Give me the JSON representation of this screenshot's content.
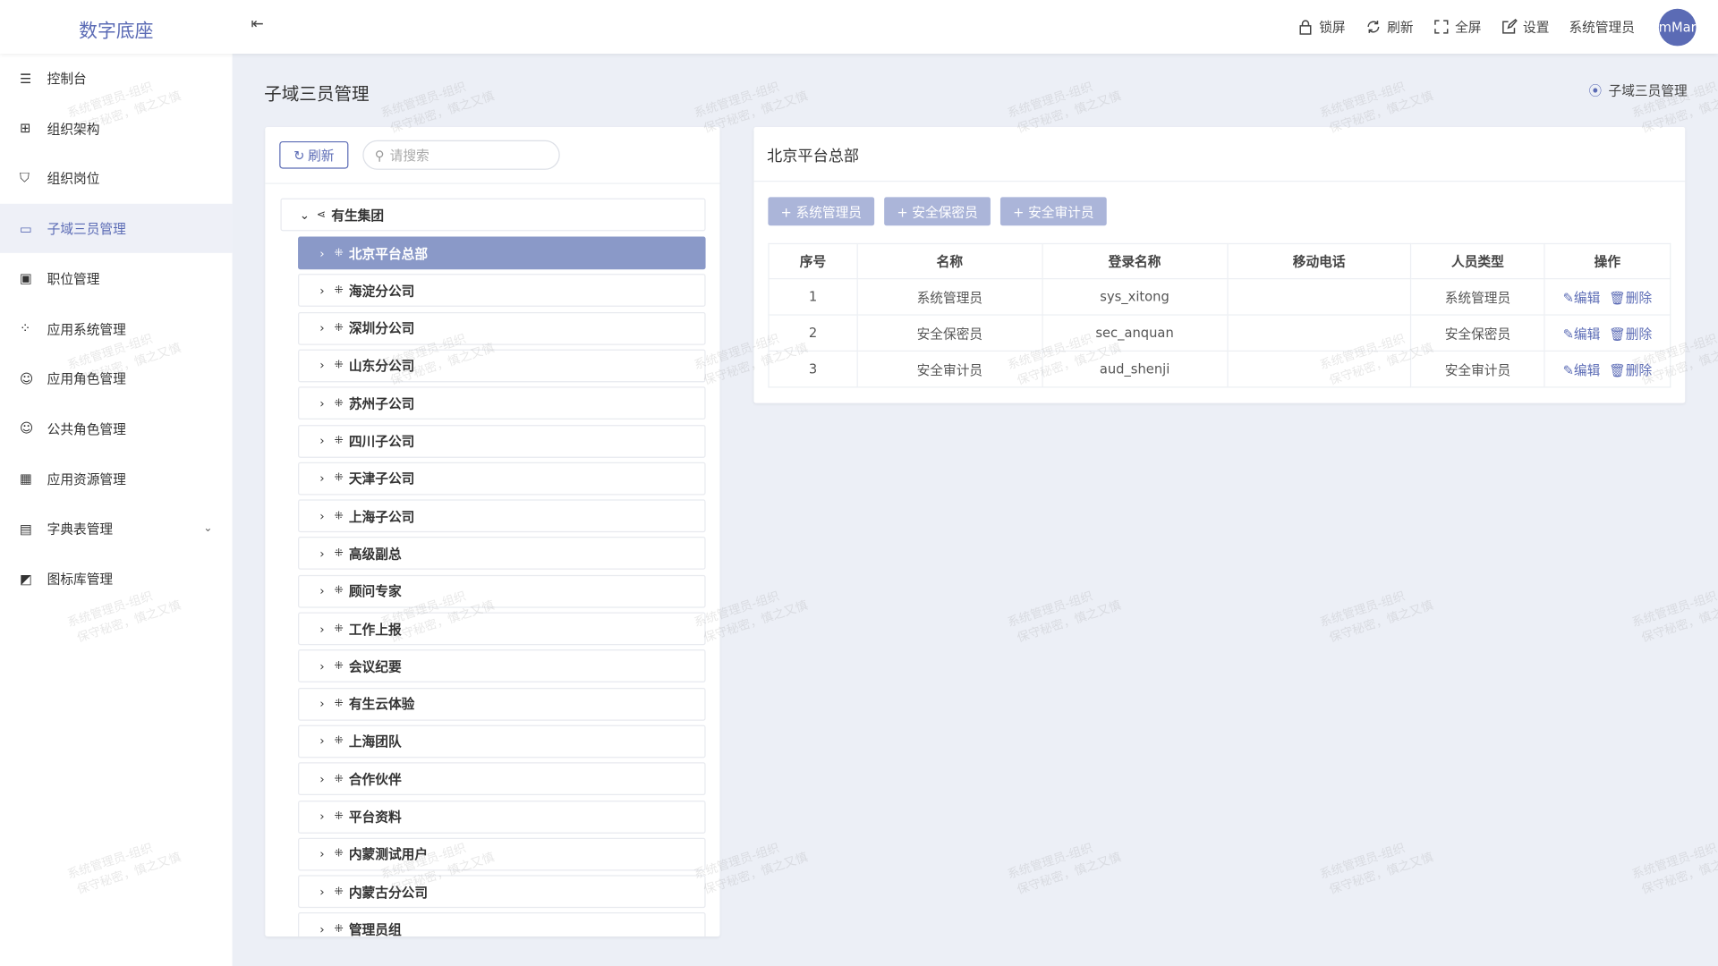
{
  "header": {
    "logo": "数字底座",
    "actions": [
      {
        "icon": "lock-icon",
        "label": "锁屏"
      },
      {
        "icon": "refresh-icon",
        "label": "刷新"
      },
      {
        "icon": "fullscreen-icon",
        "label": "全屏"
      },
      {
        "icon": "edit-settings-icon",
        "label": "设置"
      }
    ],
    "user": "系统管理员",
    "avatar_text": "mMar"
  },
  "sidebar": {
    "items": [
      {
        "label": "控制台",
        "icon": "sliders-icon"
      },
      {
        "label": "组织架构",
        "icon": "org-tree-icon"
      },
      {
        "label": "组织岗位",
        "icon": "shield-user-icon"
      },
      {
        "label": "子域三员管理",
        "icon": "window-icon",
        "active": true
      },
      {
        "label": "职位管理",
        "icon": "id-card-icon"
      },
      {
        "label": "应用系统管理",
        "icon": "apps-icon"
      },
      {
        "label": "应用角色管理",
        "icon": "user-role-icon"
      },
      {
        "label": "公共角色管理",
        "icon": "user-list-icon"
      },
      {
        "label": "应用资源管理",
        "icon": "grid-icon"
      },
      {
        "label": "字典表管理",
        "icon": "book-icon",
        "expandable": true
      },
      {
        "label": "图标库管理",
        "icon": "image-icon"
      }
    ]
  },
  "page": {
    "title": "子域三员管理",
    "breadcrumb": "子域三员管理"
  },
  "tree": {
    "refresh_label": "刷新",
    "search_placeholder": "请搜索",
    "root": "有生集团",
    "selected": "北京平台总部",
    "children": [
      "北京平台总部",
      "海淀分公司",
      "深圳分公司",
      "山东分公司",
      "苏州子公司",
      "四川子公司",
      "天津子公司",
      "上海子公司",
      "高级副总",
      "顾问专家",
      "工作上报",
      "会议纪要",
      "有生云体验",
      "上海团队",
      "合作伙伴",
      "平台资料",
      "内蒙测试用户",
      "内蒙古分公司",
      "管理员组"
    ]
  },
  "detail": {
    "title": "北京平台总部",
    "add_buttons": [
      "+ 系统管理员",
      "+ 安全保密员",
      "+ 安全审计员"
    ],
    "columns": [
      "序号",
      "名称",
      "登录名称",
      "移动电话",
      "人员类型",
      "操作"
    ],
    "rows": [
      {
        "no": "1",
        "name": "系统管理员",
        "login": "sys_xitong",
        "phone": "",
        "type": "系统管理员"
      },
      {
        "no": "2",
        "name": "安全保密员",
        "login": "sec_anquan",
        "phone": "",
        "type": "安全保密员"
      },
      {
        "no": "3",
        "name": "安全审计员",
        "login": "aud_shenji",
        "phone": "",
        "type": "安全审计员"
      }
    ],
    "edit_label": "编辑",
    "delete_label": "删除"
  },
  "watermark": {
    "line1": "系统管理员-组织",
    "line2": "保守秘密，慎之又慎"
  },
  "colors": {
    "accent": "#5b6bb5",
    "selected_node": "#8a99c8",
    "add_button": "#abb5d9",
    "background": "#eceff6"
  }
}
